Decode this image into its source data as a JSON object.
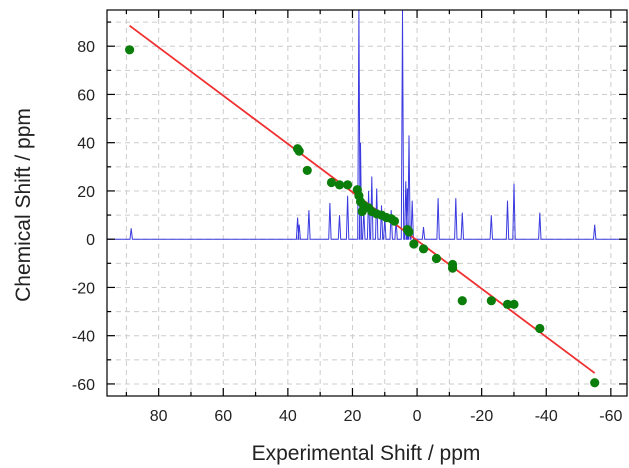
{
  "chart_data": {
    "type": "scatter",
    "xlabel": "Experimental Shift / ppm",
    "ylabel": "Chemical Shift / ppm",
    "x_reversed": true,
    "xlim": [
      96,
      -65
    ],
    "ylim": [
      -65,
      95
    ],
    "x_ticks": [
      80,
      60,
      40,
      20,
      0,
      -20,
      -40,
      -60
    ],
    "y_ticks": [
      80,
      60,
      40,
      20,
      0,
      -20,
      -40,
      -60
    ],
    "grid": true,
    "grid_style": "dashed",
    "legend": "none",
    "colors": {
      "points": "#0a7d0a",
      "fit_line": "#f03030",
      "spectrum": "#3a3ae0",
      "grid": "#cccccc",
      "axis": "#000000"
    },
    "series": [
      {
        "type": "scatter",
        "x": [
          89,
          37,
          36.5,
          34,
          26.5,
          24,
          21.5,
          18.5,
          18,
          17.5,
          17,
          16.5,
          15,
          14,
          12.5,
          11,
          9.5,
          8,
          7,
          3,
          2.5,
          1,
          -2,
          -6,
          -11,
          -11,
          -14,
          -23,
          -28,
          -30,
          -38,
          -55
        ],
        "y": [
          78.5,
          37.5,
          36.5,
          28.5,
          23.5,
          22.5,
          22.5,
          20.5,
          18,
          15.5,
          11.5,
          14,
          13,
          11.5,
          10.5,
          10,
          9,
          8.5,
          7.5,
          4,
          3,
          -2,
          -4,
          -8,
          -10.5,
          -12,
          -25.5,
          -25.5,
          -27,
          -27,
          -37,
          -59.5
        ]
      },
      {
        "type": "line",
        "x": [
          89,
          -55
        ],
        "y": [
          88.5,
          -55.5
        ]
      },
      {
        "type": "spectrum",
        "baseline": 0,
        "peaks": [
          {
            "x": 88.5,
            "h": 4.5
          },
          {
            "x": 37,
            "h": 9
          },
          {
            "x": 36.5,
            "h": 6
          },
          {
            "x": 33.5,
            "h": 12
          },
          {
            "x": 27,
            "h": 15
          },
          {
            "x": 24,
            "h": 10
          },
          {
            "x": 21.5,
            "h": 18
          },
          {
            "x": 18,
            "h": 97
          },
          {
            "x": 17.5,
            "h": 40
          },
          {
            "x": 16.5,
            "h": 12
          },
          {
            "x": 15,
            "h": 20
          },
          {
            "x": 14,
            "h": 26
          },
          {
            "x": 12.5,
            "h": 21
          },
          {
            "x": 11,
            "h": 14
          },
          {
            "x": 10,
            "h": 9
          },
          {
            "x": 8,
            "h": 12
          },
          {
            "x": 6.5,
            "h": 8
          },
          {
            "x": 4.5,
            "h": 97
          },
          {
            "x": 3.5,
            "h": 24
          },
          {
            "x": 3,
            "h": 21
          },
          {
            "x": 2.5,
            "h": 43
          },
          {
            "x": 1.5,
            "h": 16
          },
          {
            "x": -2,
            "h": 5
          },
          {
            "x": -6.5,
            "h": 17
          },
          {
            "x": -12,
            "h": 17
          },
          {
            "x": -14,
            "h": 11
          },
          {
            "x": -23,
            "h": 10
          },
          {
            "x": -28,
            "h": 16
          },
          {
            "x": -30,
            "h": 23
          },
          {
            "x": -38,
            "h": 11
          },
          {
            "x": -55,
            "h": 6
          }
        ]
      }
    ]
  }
}
